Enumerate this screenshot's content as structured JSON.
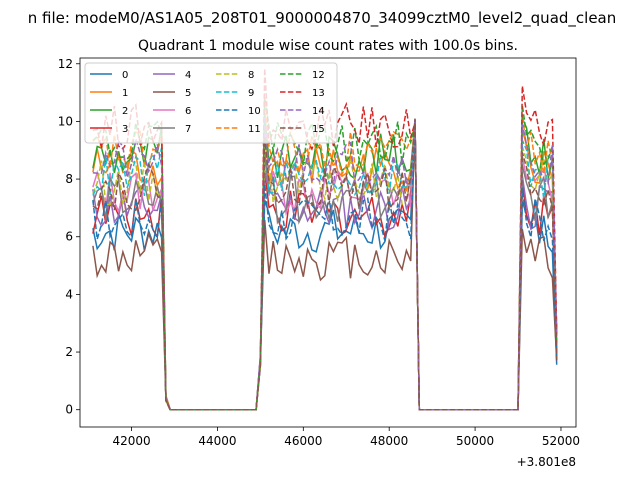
{
  "chart_data": {
    "type": "line",
    "suptitle": "n file: modeM0/AS1A05_208T01_9000004870_34099cztM0_level2_quad_clean",
    "title": "Quadrant 1 module wise count rates with 100.0s bins.",
    "xlabel": "",
    "ylabel": "",
    "x_offset_label": "+3.801e8",
    "x_tick_labels": [
      "42000",
      "44000",
      "46000",
      "48000",
      "50000",
      "52000"
    ],
    "y_tick_labels": [
      "0",
      "2",
      "4",
      "6",
      "8",
      "10",
      "12"
    ],
    "xlim": [
      40800,
      52350
    ],
    "ylim": [
      -0.6,
      12.2
    ],
    "grid": false,
    "legend_position": "top-left",
    "legend_columns": 4,
    "x_start": 41100,
    "x_step": 100,
    "x_end": 51900,
    "segments": [
      {
        "on": [
          41100,
          42700
        ],
        "off_edge": [
          42800,
          42900
        ],
        "zero": [
          42900,
          44900
        ],
        "rise": [
          45000,
          45100
        ]
      },
      {
        "on": [
          45100,
          48600
        ],
        "off_edge": [
          48600,
          48700
        ],
        "zero": [
          48700,
          51000
        ],
        "rise": [
          51000,
          51100
        ]
      },
      {
        "on": [
          51100,
          51900
        ]
      }
    ],
    "series": [
      {
        "name": "0",
        "color": "#1f77b4",
        "dash": false,
        "level": 6.2
      },
      {
        "name": "1",
        "color": "#ff7f0e",
        "dash": false,
        "level": 8.4
      },
      {
        "name": "2",
        "color": "#2ca02c",
        "dash": false,
        "level": 8.8
      },
      {
        "name": "3",
        "color": "#d62728",
        "dash": false,
        "level": 6.8
      },
      {
        "name": "4",
        "color": "#9467bd",
        "dash": false,
        "level": 7.0
      },
      {
        "name": "5",
        "color": "#8c564b",
        "dash": false,
        "level": 5.3
      },
      {
        "name": "6",
        "color": "#e377c2",
        "dash": false,
        "level": 7.6
      },
      {
        "name": "7",
        "color": "#7f7f7f",
        "dash": false,
        "level": 7.3
      },
      {
        "name": "8",
        "color": "#bcbd22",
        "dash": true,
        "level": 7.9
      },
      {
        "name": "9",
        "color": "#17becf",
        "dash": true,
        "level": 8.1
      },
      {
        "name": "10",
        "color": "#1f77b4",
        "dash": true,
        "level": 6.6
      },
      {
        "name": "11",
        "color": "#ff7f0e",
        "dash": true,
        "level": 8.9
      },
      {
        "name": "12",
        "color": "#2ca02c",
        "dash": true,
        "level": 9.2
      },
      {
        "name": "13",
        "color": "#d62728",
        "dash": true,
        "level": 9.8
      },
      {
        "name": "14",
        "color": "#9467bd",
        "dash": true,
        "level": 8.6
      },
      {
        "name": "15",
        "color": "#8c564b",
        "dash": true,
        "level": 7.7
      }
    ]
  }
}
